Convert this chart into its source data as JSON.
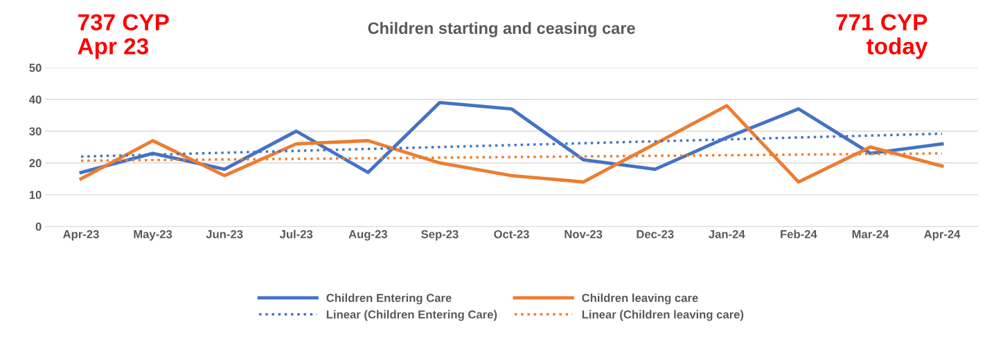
{
  "chart_data": {
    "type": "line",
    "title": "Children starting and ceasing care",
    "categories": [
      "Apr-23",
      "May-23",
      "Jun-23",
      "Jul-23",
      "Aug-23",
      "Sep-23",
      "Oct-23",
      "Nov-23",
      "Dec-23",
      "Jan-24",
      "Feb-24",
      "Mar-24",
      "Apr-24"
    ],
    "series": [
      {
        "name": "Children Entering Care",
        "color": "#4472c4",
        "values": [
          17,
          23,
          18,
          30,
          17,
          39,
          37,
          21,
          18,
          28,
          37,
          23,
          26
        ]
      },
      {
        "name": "Children leaving care",
        "color": "#ed7d31",
        "values": [
          15,
          27,
          16,
          26,
          27,
          20,
          16,
          14,
          26,
          38,
          14,
          25,
          19
        ]
      },
      {
        "name": "Linear (Children Entering Care)",
        "color": "#4472c4",
        "line_style": "dotted",
        "x": [
          "Apr-23",
          "Apr-24"
        ],
        "values": [
          22,
          29.2
        ]
      },
      {
        "name": "Linear (Children leaving care)",
        "color": "#ed7d31",
        "line_style": "dotted",
        "x": [
          "Apr-23",
          "Apr-24"
        ],
        "values": [
          20.7,
          23
        ]
      }
    ],
    "ylim": [
      0,
      50
    ],
    "yticks": [
      0,
      10,
      20,
      30,
      40,
      50
    ],
    "grid": "y",
    "legend": "bottom",
    "annotations": [
      "737 CYP\nApr 23",
      "771 CYP\ntoday"
    ]
  }
}
